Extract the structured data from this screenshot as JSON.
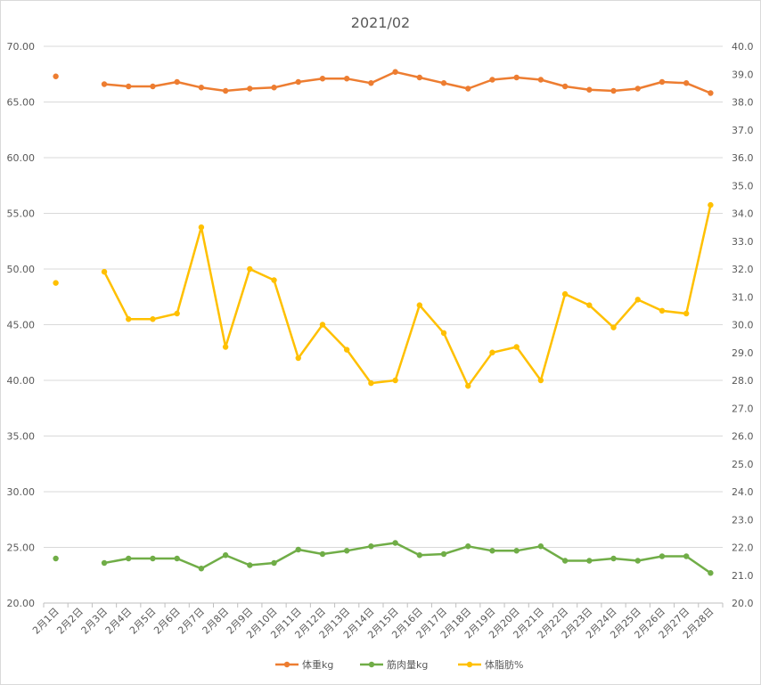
{
  "chart_data": {
    "type": "line",
    "title": "2021/02",
    "xlabel": "",
    "ylabel": "",
    "categories": [
      "2月1日",
      "2月2日",
      "2月3日",
      "2月4日",
      "2月5日",
      "2月6日",
      "2月7日",
      "2月8日",
      "2月9日",
      "2月10日",
      "2月11日",
      "2月12日",
      "2月13日",
      "2月14日",
      "2月15日",
      "2月16日",
      "2月17日",
      "2月18日",
      "2月19日",
      "2月20日",
      "2月21日",
      "2月22日",
      "2月23日",
      "2月24日",
      "2月25日",
      "2月26日",
      "2月27日",
      "2月28日"
    ],
    "ylim": [
      20,
      70
    ],
    "ylim_secondary": [
      20,
      40
    ],
    "left_ticks": [
      "20.00",
      "25.00",
      "30.00",
      "35.00",
      "40.00",
      "45.00",
      "50.00",
      "55.00",
      "60.00",
      "65.00",
      "70.00"
    ],
    "right_ticks": [
      "20.0",
      "21.0",
      "22.0",
      "23.0",
      "24.0",
      "25.0",
      "26.0",
      "27.0",
      "28.0",
      "29.0",
      "30.0",
      "31.0",
      "32.0",
      "33.0",
      "34.0",
      "35.0",
      "36.0",
      "37.0",
      "38.0",
      "39.0",
      "40.0"
    ],
    "grid": true,
    "legend_position": "bottom",
    "series": [
      {
        "name": "体重kg",
        "axis": "left",
        "color": "#ED7D31",
        "values": [
          67.3,
          null,
          66.6,
          66.4,
          66.4,
          66.8,
          66.3,
          66.0,
          66.2,
          66.3,
          66.8,
          67.1,
          67.1,
          66.7,
          67.7,
          67.2,
          66.7,
          66.2,
          67.0,
          67.2,
          67.0,
          66.4,
          66.1,
          66.0,
          66.2,
          66.8,
          66.7,
          65.8
        ]
      },
      {
        "name": "筋肉量kg",
        "axis": "left",
        "color": "#70AD47",
        "values": [
          24.0,
          null,
          23.6,
          24.0,
          24.0,
          24.0,
          23.1,
          24.3,
          23.4,
          23.6,
          24.8,
          24.4,
          24.7,
          25.1,
          25.4,
          24.3,
          24.4,
          25.1,
          24.7,
          24.7,
          25.1,
          23.8,
          23.8,
          24.0,
          23.8,
          24.2,
          24.2,
          22.7
        ]
      },
      {
        "name": "体脂肪%",
        "axis": "right",
        "color": "#FFC000",
        "values": [
          31.5,
          null,
          31.9,
          30.2,
          30.2,
          30.4,
          33.5,
          29.2,
          32.0,
          31.6,
          28.8,
          30.0,
          29.1,
          27.9,
          28.0,
          30.7,
          29.7,
          27.8,
          29.0,
          29.2,
          28.0,
          31.1,
          30.7,
          29.9,
          30.9,
          30.5,
          30.4,
          34.3
        ]
      }
    ]
  }
}
